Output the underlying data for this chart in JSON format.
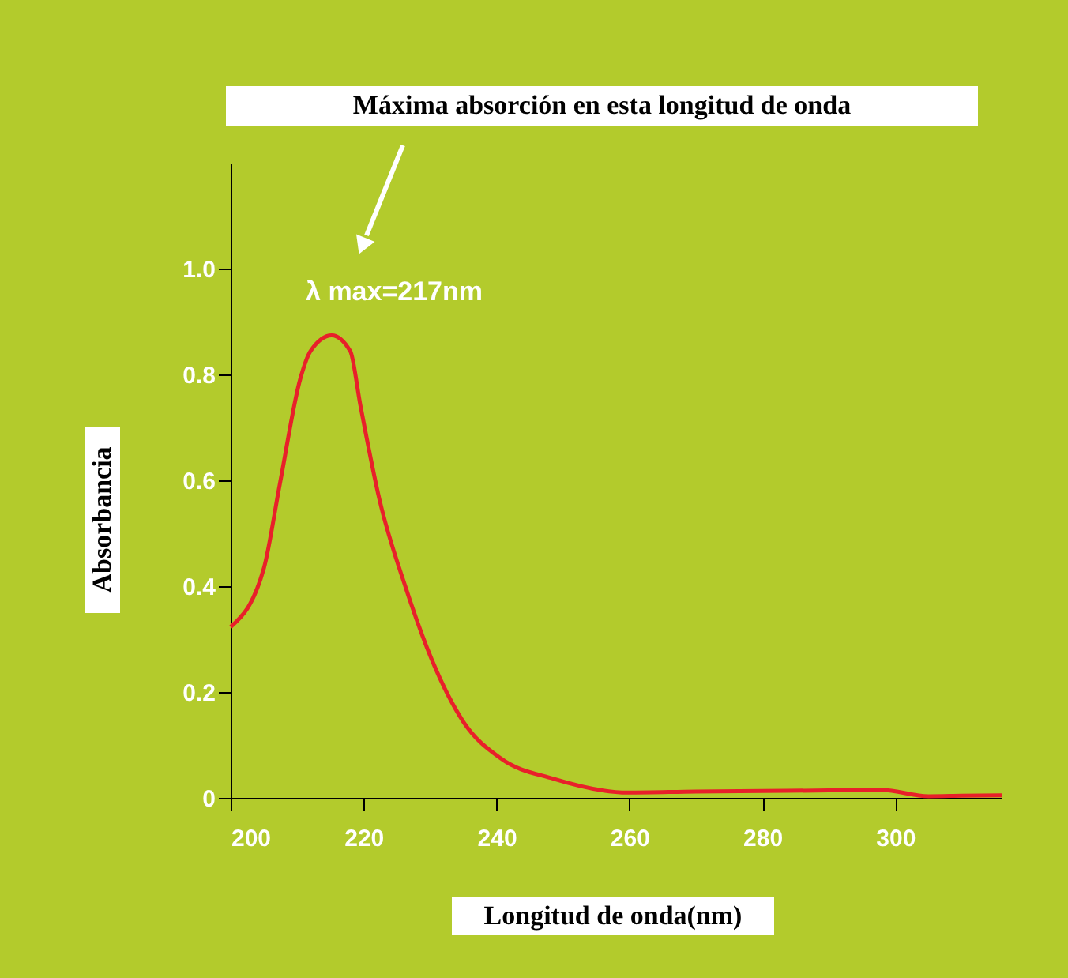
{
  "chart_data": {
    "type": "line",
    "title": "Máxima absorción en esta longitud de onda",
    "xlabel": "Longitud de onda(nm)",
    "ylabel": "Absorbancia",
    "x": [
      200,
      205,
      207.4,
      210.5,
      212,
      215.2,
      218,
      219.5,
      222.4,
      226.4,
      230.2,
      235,
      240.6,
      248.6,
      259.8,
      270,
      280,
      290,
      298,
      305,
      310,
      316
    ],
    "series": [
      {
        "color": "#e8202a",
        "values": [
          0.323,
          0.434,
          0.593,
          0.793,
          0.844,
          0.874,
          0.844,
          0.743,
          0.563,
          0.395,
          0.263,
          0.144,
          0.075,
          0.036,
          0.01,
          0.012,
          0.013,
          0.014,
          0.015,
          0.003,
          0.004,
          0.005
        ]
      }
    ],
    "xlim": [
      200,
      316
    ],
    "xticks": [
      200,
      220,
      240,
      260,
      280,
      300
    ],
    "ylim": [
      0,
      1.2
    ],
    "yticks": [
      0,
      0.2,
      0.4,
      0.6,
      0.8,
      {
        "value": 1,
        "label": "1.0"
      }
    ],
    "annotations": [
      {
        "text": "λ max=217nm",
        "x": 217,
        "y": 0.874
      }
    ],
    "grid": false,
    "marker": "none",
    "line_style": "solid"
  }
}
